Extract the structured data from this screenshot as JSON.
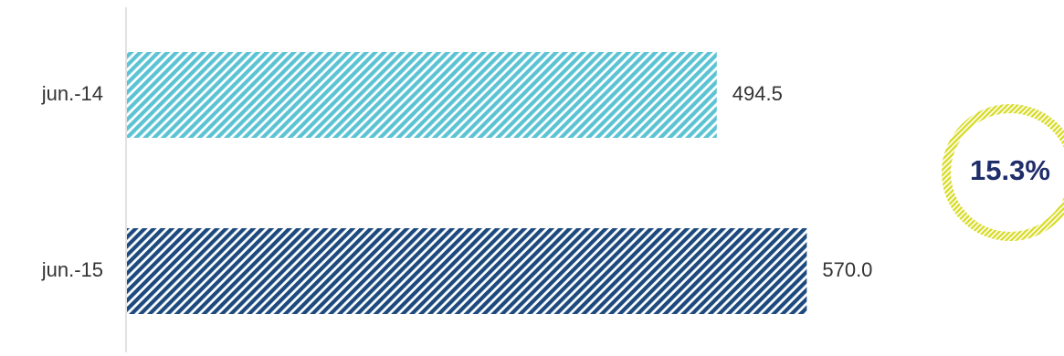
{
  "chart_data": {
    "type": "bar",
    "orientation": "horizontal",
    "categories": [
      "jun.-14",
      "jun.-15"
    ],
    "values": [
      494.5,
      570.0
    ],
    "value_labels": [
      "494.5",
      "570.0"
    ],
    "title": "",
    "xlabel": "",
    "ylabel": "",
    "xlim": [
      0,
      650
    ],
    "grid": false,
    "legend": "none",
    "bar_colors": [
      "#5bc3d4",
      "#1d4a7e"
    ],
    "bar_fill": "diagonal-stripes",
    "annotation": {
      "text": "15.3%",
      "text_color": "#1f2d6b",
      "ring_color": "#d8dc2a"
    }
  }
}
